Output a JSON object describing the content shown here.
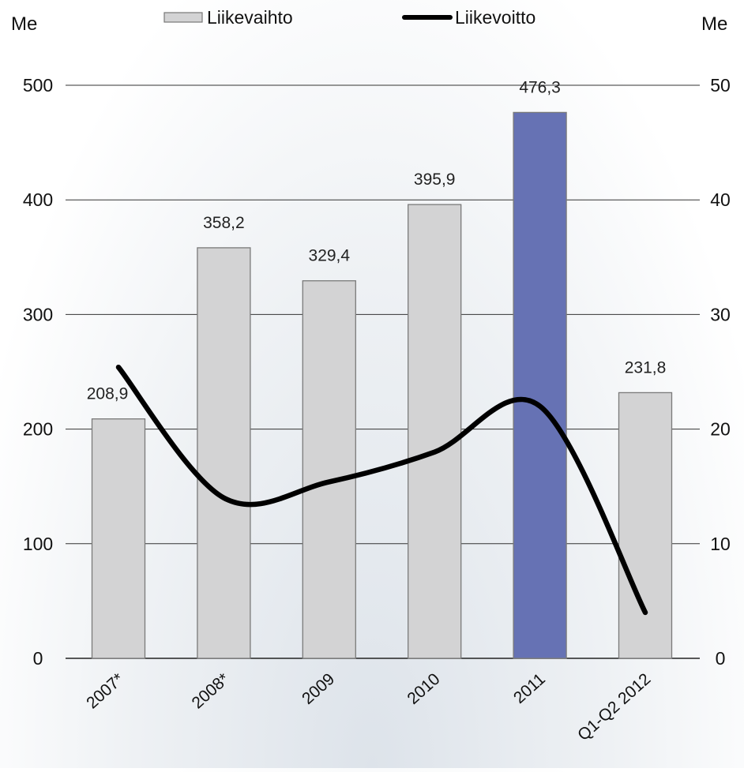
{
  "chart_data": {
    "type": "bar",
    "categories": [
      "2007*",
      "2008*",
      "2009",
      "2010",
      "2011",
      "Q1-Q2 2012"
    ],
    "series": [
      {
        "name": "Liikevaihto",
        "type": "bar",
        "axis": "left",
        "values": [
          208.9,
          358.2,
          329.4,
          395.9,
          476.3,
          231.8
        ],
        "data_labels": [
          "208,9",
          "358,2",
          "329,4",
          "395,9",
          "476,3",
          "231,8"
        ],
        "color": "#d3d3d4",
        "highlight_index": 4,
        "highlight_color": "#6672b4"
      },
      {
        "name": "Liikevoitto",
        "type": "line",
        "axis": "right",
        "values": [
          25.4,
          14.0,
          15.4,
          18.0,
          22.0,
          4.0
        ],
        "color": "#000000"
      }
    ],
    "y_left": {
      "label": "Me",
      "ylim": [
        0,
        500
      ],
      "ticks": [
        "0",
        "100",
        "200",
        "300",
        "400",
        "500"
      ]
    },
    "y_right": {
      "label": "Me",
      "ylim": [
        0,
        50
      ],
      "ticks": [
        "0",
        "10",
        "20",
        "30",
        "40",
        "50"
      ]
    },
    "grid": true,
    "legend": "top-center"
  }
}
